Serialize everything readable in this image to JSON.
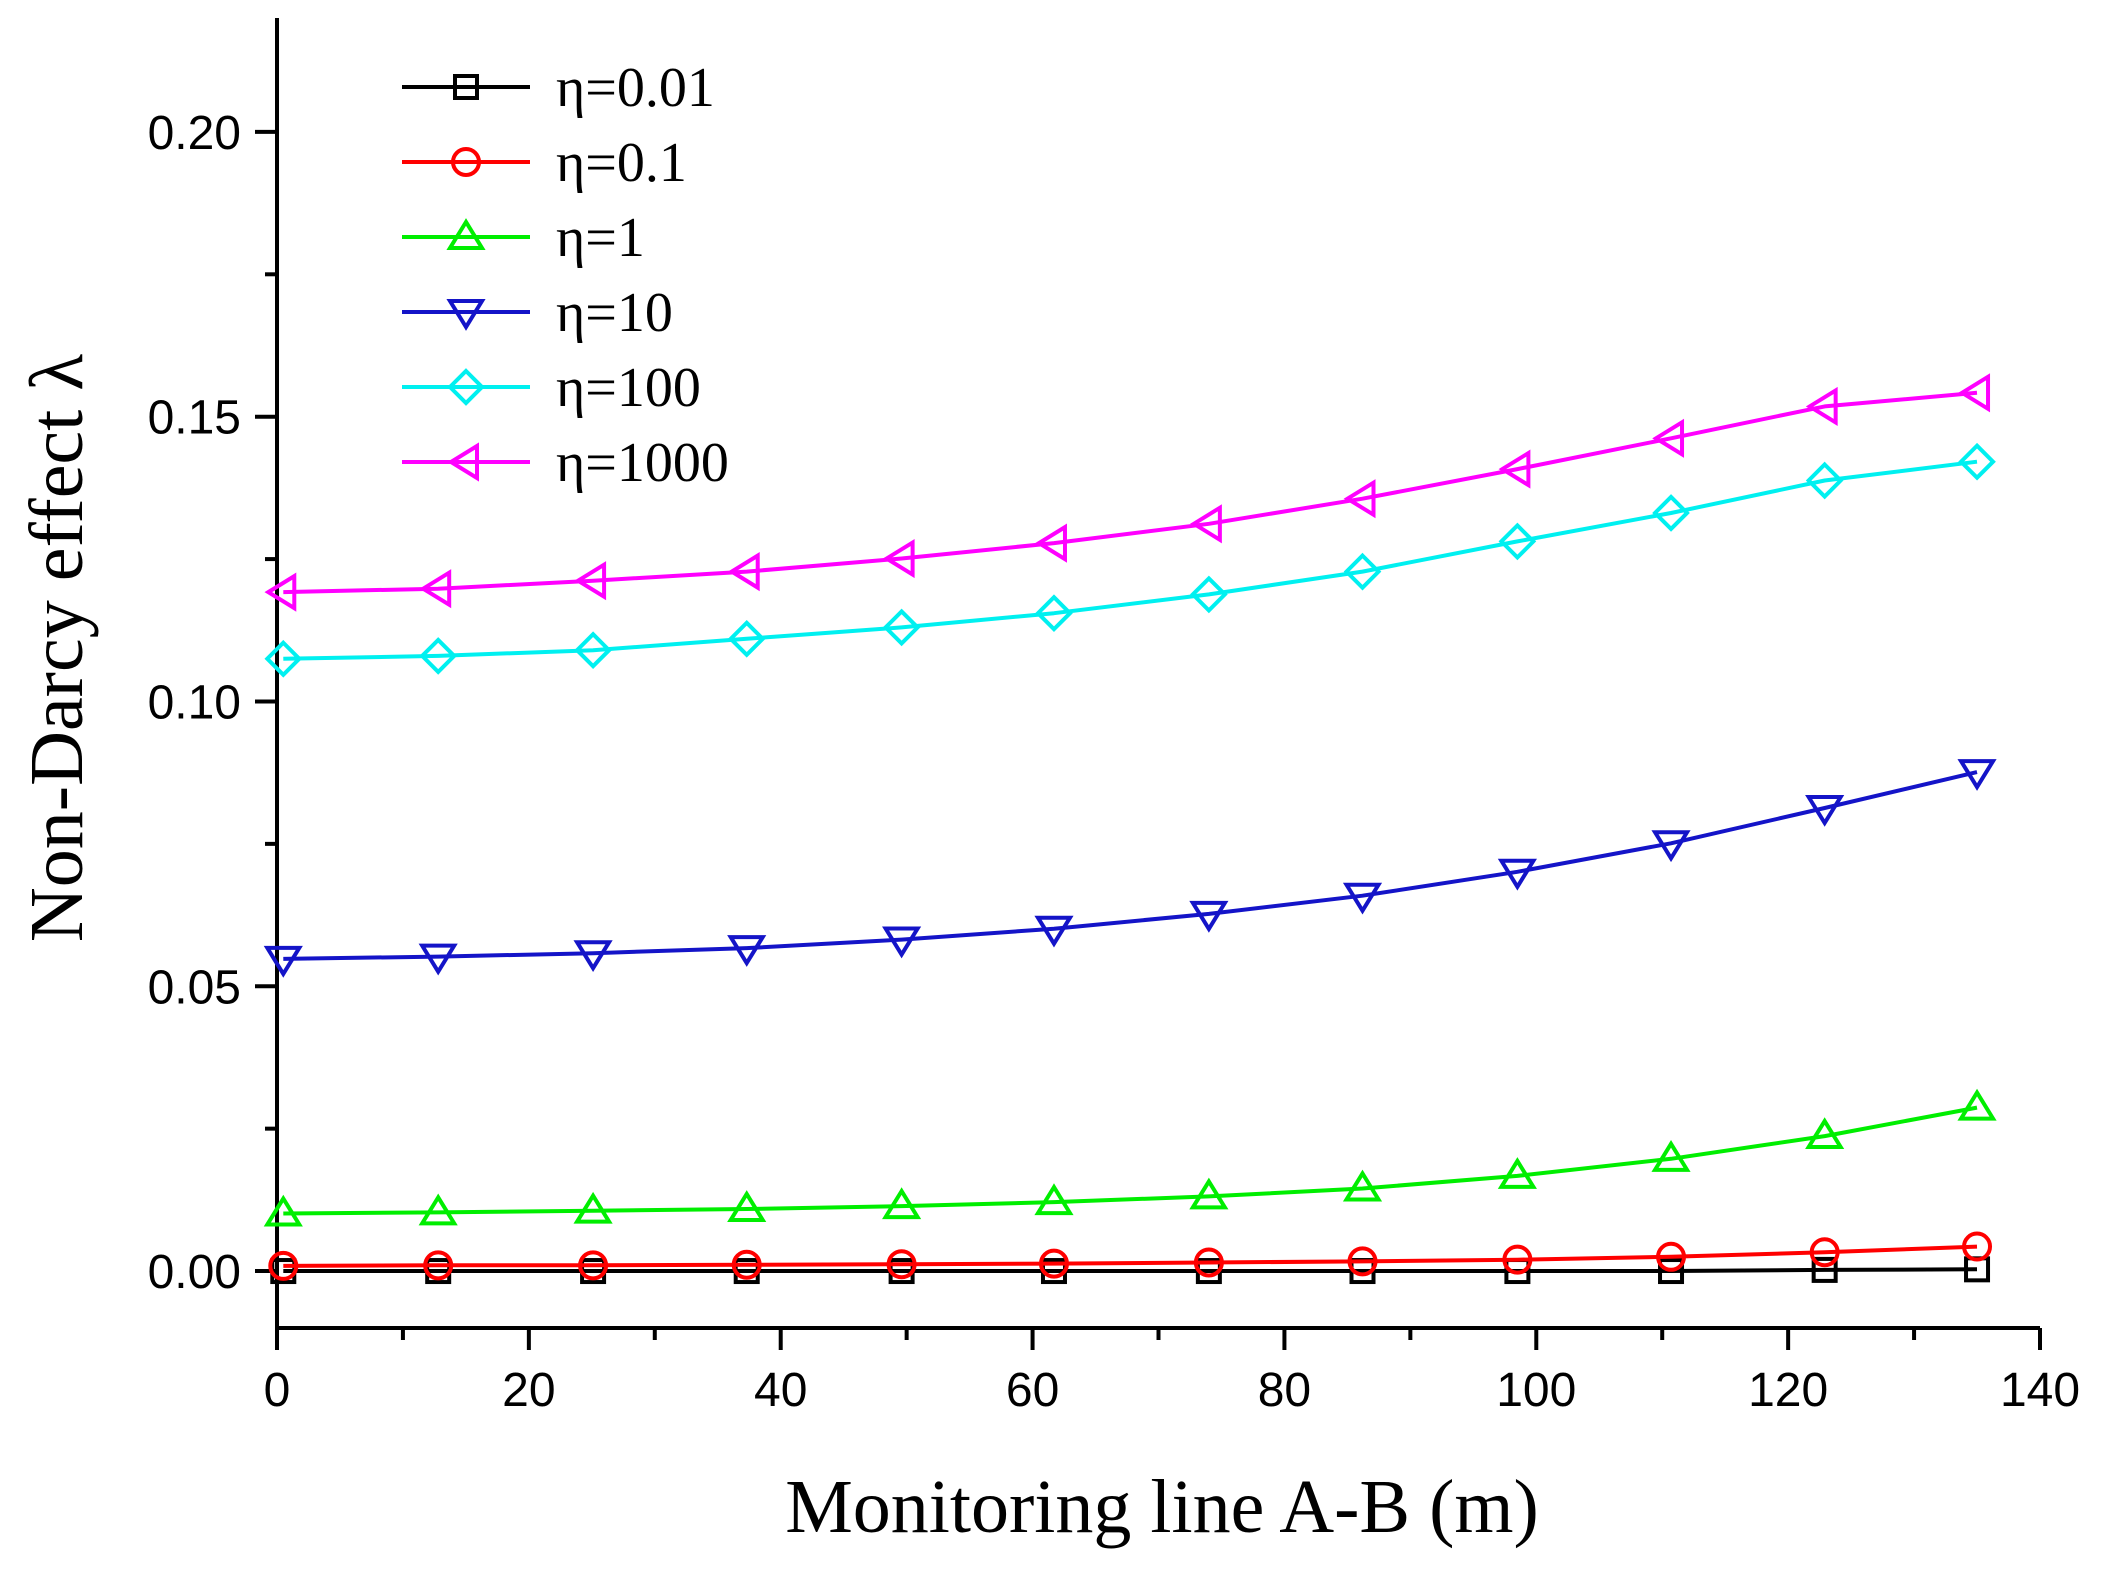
{
  "chart_data": {
    "type": "line",
    "title": "",
    "xlabel": "Monitoring line A-B (m)",
    "ylabel": "Non-Darcy effect λ",
    "xlim": [
      0,
      140
    ],
    "ylim": [
      -0.01,
      0.22
    ],
    "xticks": [
      0,
      20,
      40,
      60,
      80,
      100,
      120,
      140
    ],
    "xtick_labels": [
      "0",
      "20",
      "40",
      "60",
      "80",
      "100",
      "120",
      "140"
    ],
    "yticks": [
      0.0,
      0.05,
      0.1,
      0.15,
      0.2
    ],
    "ytick_labels": [
      "0.00",
      "0.05",
      "0.10",
      "0.15",
      "0.20"
    ],
    "grid": false,
    "legend_position": "top-left",
    "x": [
      0.5,
      12.8,
      25.1,
      37.3,
      49.6,
      61.7,
      74.0,
      86.2,
      98.5,
      110.7,
      122.9,
      135.0
    ],
    "series": [
      {
        "name": "η=0.01",
        "color": "#000000",
        "marker": "square",
        "values": [
          0.0,
          0.0,
          0.0,
          0.0,
          0.0,
          0.0,
          0.0,
          0.0,
          0.0,
          0.0,
          0.0002,
          0.0003
        ]
      },
      {
        "name": "η=0.1",
        "color": "#ff0000",
        "marker": "circle",
        "values": [
          0.0009,
          0.001,
          0.001,
          0.0011,
          0.0012,
          0.0013,
          0.0015,
          0.0017,
          0.002,
          0.0025,
          0.0033,
          0.0043
        ]
      },
      {
        "name": "η=1",
        "color": "#00ee00",
        "marker": "triangle-up",
        "values": [
          0.0101,
          0.0103,
          0.0106,
          0.0109,
          0.0114,
          0.0121,
          0.0131,
          0.0145,
          0.0167,
          0.0197,
          0.0237,
          0.0287
        ]
      },
      {
        "name": "η=10",
        "color": "#1414c8",
        "marker": "triangle-down",
        "values": [
          0.0548,
          0.0552,
          0.0558,
          0.0567,
          0.0582,
          0.0601,
          0.0627,
          0.0659,
          0.0701,
          0.0751,
          0.0813,
          0.0876
        ]
      },
      {
        "name": "η=100",
        "color": "#00f0f0",
        "marker": "diamond",
        "values": [
          0.1075,
          0.108,
          0.109,
          0.111,
          0.113,
          0.1155,
          0.1188,
          0.1228,
          0.1281,
          0.1331,
          0.1388,
          0.1421
        ]
      },
      {
        "name": "η=1000",
        "color": "#ff00ff",
        "marker": "triangle-left",
        "values": [
          0.1192,
          0.1198,
          0.1212,
          0.1228,
          0.1251,
          0.1278,
          0.1312,
          0.1356,
          0.1408,
          0.1462,
          0.1518,
          0.1542
        ]
      }
    ]
  }
}
